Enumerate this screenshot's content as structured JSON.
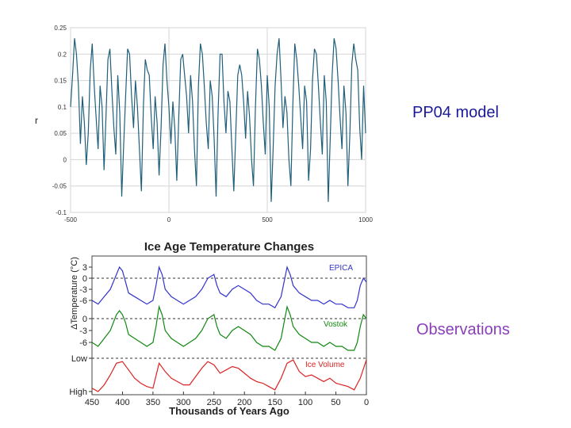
{
  "labels": {
    "model": "PP04 model",
    "observations": "Observations"
  },
  "colors": {
    "model_line": "#1f5f7a",
    "epica": "#3333cc",
    "vostok": "#118811",
    "ice": "#dd2222",
    "model_text": "#1a1a99",
    "obs_text": "#8a3fb8"
  },
  "chart_data": [
    {
      "type": "line",
      "title": "",
      "xlabel": "",
      "ylabel": "r",
      "xlim": [
        -500,
        1000
      ],
      "ylim": [
        -0.1,
        0.25
      ],
      "xticks": [
        -500,
        0,
        500,
        1000
      ],
      "yticks": [
        -0.1,
        -0.05,
        0,
        0.05,
        0.1,
        0.15,
        0.2,
        0.25
      ],
      "xtick_labels": [
        "-500",
        "0",
        "500",
        "1000"
      ],
      "ytick_labels": [
        "-0.1",
        "-0.05",
        "0",
        "0.05",
        "0.1",
        "0.15",
        "0.2",
        "0.25"
      ],
      "grid": true,
      "series": [
        {
          "name": "r",
          "x": [
            -500,
            -490,
            -480,
            -470,
            -460,
            -450,
            -440,
            -430,
            -420,
            -410,
            -400,
            -390,
            -380,
            -370,
            -360,
            -350,
            -340,
            -330,
            -320,
            -310,
            -300,
            -290,
            -280,
            -270,
            -260,
            -250,
            -240,
            -230,
            -220,
            -210,
            -200,
            -190,
            -180,
            -170,
            -160,
            -150,
            -140,
            -130,
            -120,
            -110,
            -100,
            -90,
            -80,
            -70,
            -60,
            -50,
            -40,
            -30,
            -20,
            -10,
            0,
            10,
            20,
            30,
            40,
            50,
            60,
            70,
            80,
            90,
            100,
            110,
            120,
            130,
            140,
            150,
            160,
            170,
            180,
            190,
            200,
            210,
            220,
            230,
            240,
            250,
            260,
            270,
            280,
            290,
            300,
            310,
            320,
            330,
            340,
            350,
            360,
            370,
            380,
            390,
            400,
            410,
            420,
            430,
            440,
            450,
            460,
            470,
            480,
            490,
            500,
            510,
            520,
            530,
            540,
            550,
            560,
            570,
            580,
            590,
            600,
            610,
            620,
            630,
            640,
            650,
            660,
            670,
            680,
            690,
            700,
            710,
            720,
            730,
            740,
            750,
            760,
            770,
            780,
            790,
            800,
            810,
            820,
            830,
            840,
            850,
            860,
            870,
            880,
            890,
            900,
            910,
            920,
            930,
            940,
            950,
            960,
            970,
            980,
            990,
            1000
          ],
          "values": [
            0.1,
            0.16,
            0.23,
            0.2,
            0.14,
            0.03,
            0.12,
            0.07,
            -0.01,
            0.05,
            0.17,
            0.22,
            0.14,
            0.08,
            0.02,
            0.14,
            0.1,
            -0.02,
            0.08,
            0.19,
            0.21,
            0.13,
            0.06,
            0.01,
            0.16,
            0.09,
            -0.07,
            0.03,
            0.12,
            0.21,
            0.2,
            0.12,
            0.06,
            0.15,
            0.1,
            0.02,
            -0.06,
            0.1,
            0.19,
            0.17,
            0.16,
            0.08,
            0.02,
            0.12,
            0.07,
            -0.03,
            0.06,
            0.18,
            0.22,
            0.15,
            0.1,
            0.03,
            0.11,
            0.06,
            -0.04,
            0.08,
            0.19,
            0.2,
            0.16,
            0.12,
            0.05,
            0.16,
            0.11,
            0.02,
            -0.05,
            0.14,
            0.22,
            0.2,
            0.14,
            0.07,
            0.02,
            0.15,
            0.12,
            0.04,
            -0.07,
            0.09,
            0.2,
            0.2,
            0.11,
            0.05,
            0.13,
            0.11,
            0.02,
            -0.06,
            0.05,
            0.16,
            0.18,
            0.16,
            0.11,
            0.04,
            0.13,
            0.08,
            0.0,
            -0.05,
            0.1,
            0.21,
            0.19,
            0.14,
            0.07,
            0.01,
            0.16,
            0.1,
            -0.08,
            0.02,
            0.14,
            0.2,
            0.23,
            0.15,
            0.06,
            0.12,
            0.09,
            0.0,
            -0.05,
            0.1,
            0.22,
            0.19,
            0.14,
            0.08,
            0.02,
            0.14,
            0.11,
            -0.04,
            0.02,
            0.15,
            0.21,
            0.2,
            0.14,
            0.07,
            0.01,
            0.16,
            0.11,
            -0.08,
            0.04,
            0.16,
            0.23,
            0.21,
            0.15,
            0.08,
            0.02,
            0.14,
            0.09,
            -0.05,
            0.05,
            0.18,
            0.22,
            0.19,
            0.17,
            0.06,
            0.0,
            0.14,
            0.05
          ]
        }
      ]
    },
    {
      "type": "line",
      "title": "Ice Age Temperature Changes",
      "xlabel": "Thousands of Years Ago",
      "ylabel": "ΔTemperature (°C)",
      "xlim": [
        450,
        0
      ],
      "xticks": [
        450,
        400,
        350,
        300,
        250,
        200,
        150,
        100,
        50,
        0
      ],
      "xtick_labels": [
        "450",
        "400",
        "350",
        "300",
        "250",
        "200",
        "150",
        "100",
        "50",
        "0"
      ],
      "panels": [
        {
          "name": "EPICA",
          "yticks": [
            "3",
            "0",
            "-3",
            "-6"
          ]
        },
        {
          "name": "Vostok",
          "yticks": [
            "0",
            "-3",
            "-6"
          ]
        },
        {
          "name": "Ice Volume",
          "yticks": [
            "Low",
            "High"
          ]
        }
      ],
      "series": [
        {
          "name": "EPICA",
          "x": [
            450,
            440,
            430,
            420,
            410,
            405,
            400,
            395,
            390,
            380,
            370,
            360,
            350,
            345,
            340,
            335,
            330,
            320,
            310,
            300,
            290,
            280,
            270,
            260,
            250,
            245,
            240,
            230,
            220,
            210,
            200,
            190,
            180,
            170,
            160,
            150,
            140,
            135,
            130,
            125,
            120,
            110,
            100,
            90,
            80,
            70,
            60,
            50,
            40,
            30,
            20,
            15,
            10,
            5,
            0
          ],
          "values": [
            -6,
            -7,
            -5,
            -3,
            1,
            3,
            2,
            -1,
            -4,
            -5,
            -6,
            -7,
            -6,
            -2,
            3,
            1,
            -3,
            -5,
            -6,
            -7,
            -6,
            -5,
            -3,
            0,
            1,
            -2,
            -4,
            -5,
            -3,
            -2,
            -3,
            -4,
            -6,
            -7,
            -7,
            -8,
            -5,
            -1,
            3,
            1,
            -2,
            -4,
            -5,
            -6,
            -6,
            -7,
            -6,
            -7,
            -7,
            -8,
            -8,
            -6,
            -2,
            0,
            -1
          ]
        },
        {
          "name": "Vostok",
          "x": [
            450,
            440,
            430,
            420,
            410,
            405,
            400,
            395,
            390,
            380,
            370,
            360,
            350,
            345,
            340,
            335,
            330,
            320,
            310,
            300,
            290,
            280,
            270,
            260,
            250,
            245,
            240,
            230,
            220,
            210,
            200,
            190,
            180,
            170,
            160,
            150,
            140,
            135,
            130,
            125,
            120,
            110,
            100,
            90,
            80,
            70,
            60,
            50,
            40,
            30,
            20,
            15,
            10,
            5,
            0
          ],
          "values": [
            -6,
            -7,
            -5,
            -3,
            1,
            2,
            1,
            -1,
            -4,
            -5,
            -6,
            -7,
            -6,
            -2,
            3,
            1,
            -3,
            -5,
            -6,
            -7,
            -6,
            -5,
            -3,
            0,
            1,
            -2,
            -4,
            -5,
            -3,
            -2,
            -3,
            -4,
            -6,
            -7,
            -7,
            -8,
            -5,
            -1,
            3,
            1,
            -2,
            -4,
            -5,
            -6,
            -6,
            -7,
            -6,
            -7,
            -7,
            -8,
            -8,
            -6,
            -2,
            1,
            0
          ]
        },
        {
          "name": "Ice Volume",
          "x": [
            450,
            440,
            430,
            420,
            410,
            400,
            390,
            380,
            370,
            360,
            350,
            340,
            330,
            320,
            310,
            300,
            290,
            280,
            270,
            260,
            250,
            240,
            230,
            220,
            210,
            200,
            190,
            180,
            170,
            160,
            150,
            140,
            130,
            120,
            110,
            100,
            90,
            80,
            70,
            60,
            50,
            40,
            30,
            20,
            10,
            0
          ],
          "values": [
            0.9,
            1.0,
            0.8,
            0.5,
            0.15,
            0.1,
            0.35,
            0.6,
            0.75,
            0.85,
            0.9,
            0.15,
            0.4,
            0.6,
            0.7,
            0.8,
            0.8,
            0.55,
            0.3,
            0.1,
            0.2,
            0.45,
            0.35,
            0.25,
            0.3,
            0.45,
            0.6,
            0.7,
            0.75,
            0.85,
            0.95,
            0.6,
            0.15,
            0.05,
            0.4,
            0.55,
            0.5,
            0.6,
            0.7,
            0.6,
            0.75,
            0.8,
            0.85,
            0.95,
            0.6,
            0.05
          ]
        }
      ]
    }
  ]
}
